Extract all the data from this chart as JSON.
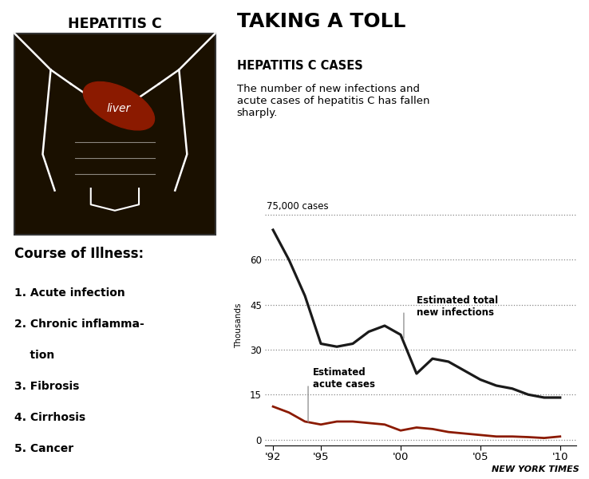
{
  "title_left": "HEPATITIS C",
  "title_right_main": "TAKING A TOLL",
  "title_right_sub": "HEPATITIS C CASES",
  "title_right_desc": "The number of new infections and\nacute cases of hepatitis C has fallen\nsharply.",
  "course_title": "Course of Illness:",
  "ylabel": "Thousands",
  "ytop_label": "75,000 cases",
  "yticks": [
    0,
    15,
    30,
    45,
    60
  ],
  "xtick_labels": [
    "'92",
    "'95",
    "'00",
    "'05",
    "'10"
  ],
  "xtick_values": [
    1992,
    1995,
    2000,
    2005,
    2010
  ],
  "xlim": [
    1991.5,
    2011
  ],
  "ylim": [
    -2,
    78
  ],
  "infections_x": [
    1992,
    1993,
    1994,
    1995,
    1996,
    1997,
    1998,
    1999,
    2000,
    2001,
    2002,
    2003,
    2004,
    2005,
    2006,
    2007,
    2008,
    2009,
    2010
  ],
  "infections_y": [
    70,
    60,
    48,
    32,
    31,
    32,
    36,
    38,
    35,
    22,
    27,
    26,
    23,
    20,
    18,
    17,
    15,
    14,
    14
  ],
  "acute_x": [
    1992,
    1993,
    1994,
    1995,
    1996,
    1997,
    1998,
    1999,
    2000,
    2001,
    2002,
    2003,
    2004,
    2005,
    2006,
    2007,
    2008,
    2009,
    2010
  ],
  "acute_y": [
    11,
    9,
    6,
    5,
    6,
    6,
    5.5,
    5,
    3,
    4,
    3.5,
    2.5,
    2,
    1.5,
    1,
    1,
    0.8,
    0.5,
    1
  ],
  "infection_color": "#1a1a1a",
  "acute_color": "#8b1a00",
  "background_color": "#ffffff",
  "source_text": "NEW YORK TIMES",
  "liver_label": "liver",
  "body_color": "#1a1000",
  "liver_color": "#8b1a00"
}
